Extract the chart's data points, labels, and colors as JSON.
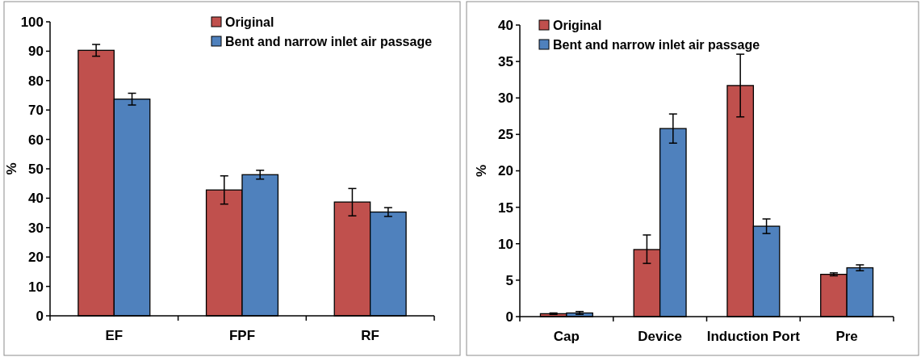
{
  "chart_data": [
    {
      "type": "bar",
      "ylabel": "%",
      "categories": [
        "EF",
        "FPF",
        "RF"
      ],
      "ylim": [
        0,
        100
      ],
      "yticks": [
        0,
        10,
        20,
        30,
        40,
        50,
        60,
        70,
        80,
        90,
        100
      ],
      "legend": "top right",
      "series": [
        {
          "name": "Original",
          "color": "#c0504d",
          "values": [
            90.3,
            42.8,
            38.7
          ],
          "errors": [
            2,
            [
              38,
              47.6
            ],
            [
              34,
              43.3
            ]
          ]
        },
        {
          "name": "Bent and narrow inlet air passage",
          "color": "#4f81bd",
          "values": [
            73.7,
            48,
            35.3
          ],
          "errors": [
            2,
            [
              46.5,
              49.5
            ],
            [
              33.8,
              36.8
            ]
          ]
        }
      ]
    },
    {
      "type": "bar",
      "ylabel": "%",
      "categories": [
        "Cap",
        "Device",
        "Induction Port",
        "Pre"
      ],
      "ylim": [
        0,
        40
      ],
      "yticks": [
        0,
        5,
        10,
        15,
        20,
        25,
        30,
        35,
        40
      ],
      "legend": "top left",
      "series": [
        {
          "name": "Original",
          "color": "#c0504d",
          "values": [
            0.4,
            9.2,
            31.7,
            5.8
          ],
          "errors": [
            0.1,
            [
              7.3,
              11.2
            ],
            [
              27.4,
              36
            ],
            [
              5.6,
              6
            ]
          ]
        },
        {
          "name": "Bent and narrow inlet air passage",
          "color": "#4f81bd",
          "values": [
            0.5,
            25.8,
            12.4,
            6.7
          ],
          "errors": [
            0.2,
            [
              23.8,
              27.8
            ],
            [
              11.4,
              13.4
            ],
            [
              6.3,
              7.1
            ]
          ]
        }
      ]
    }
  ]
}
